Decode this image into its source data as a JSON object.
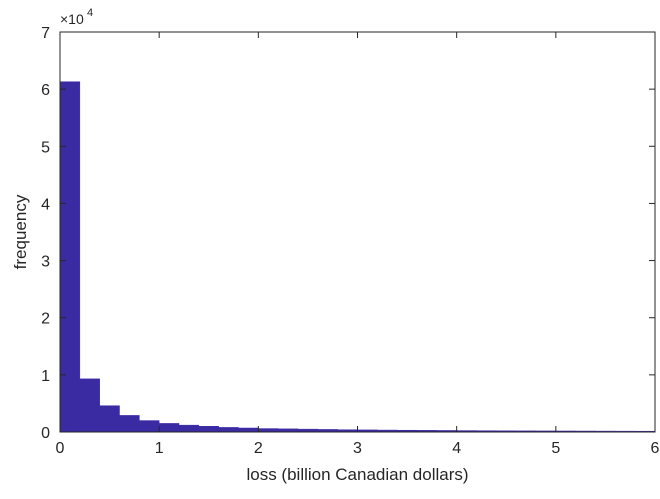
{
  "chart_data": {
    "type": "bar",
    "xlabel": "loss (billion Canadian dollars)",
    "ylabel": "frequency",
    "y_scale_label": {
      "base": "×10",
      "exponent": "4"
    },
    "xlim": [
      0,
      6
    ],
    "ylim": [
      0,
      7
    ],
    "x_ticks": [
      "0",
      "1",
      "2",
      "3",
      "4",
      "5",
      "6"
    ],
    "y_ticks": [
      "0",
      "1",
      "2",
      "3",
      "4",
      "5",
      "6",
      "7"
    ],
    "grid": false,
    "bar_color": "#3b2ba3",
    "bin_width": 0.2,
    "bins_start": [
      0,
      0.2,
      0.4,
      0.6,
      0.8,
      1.0,
      1.2,
      1.4,
      1.6,
      1.8,
      2.0,
      2.2,
      2.4,
      2.6,
      2.8,
      3.0,
      3.2,
      3.4,
      3.6,
      3.8,
      4.0,
      4.2,
      4.4,
      4.6,
      4.8,
      5.0,
      5.2,
      5.4,
      5.6,
      5.8
    ],
    "values": [
      6.13,
      0.93,
      0.46,
      0.29,
      0.2,
      0.15,
      0.12,
      0.1,
      0.08,
      0.07,
      0.06,
      0.055,
      0.05,
      0.045,
      0.04,
      0.037,
      0.034,
      0.031,
      0.029,
      0.027,
      0.025,
      0.023,
      0.021,
      0.02,
      0.019,
      0.018,
      0.017,
      0.016,
      0.015,
      0.014
    ]
  }
}
